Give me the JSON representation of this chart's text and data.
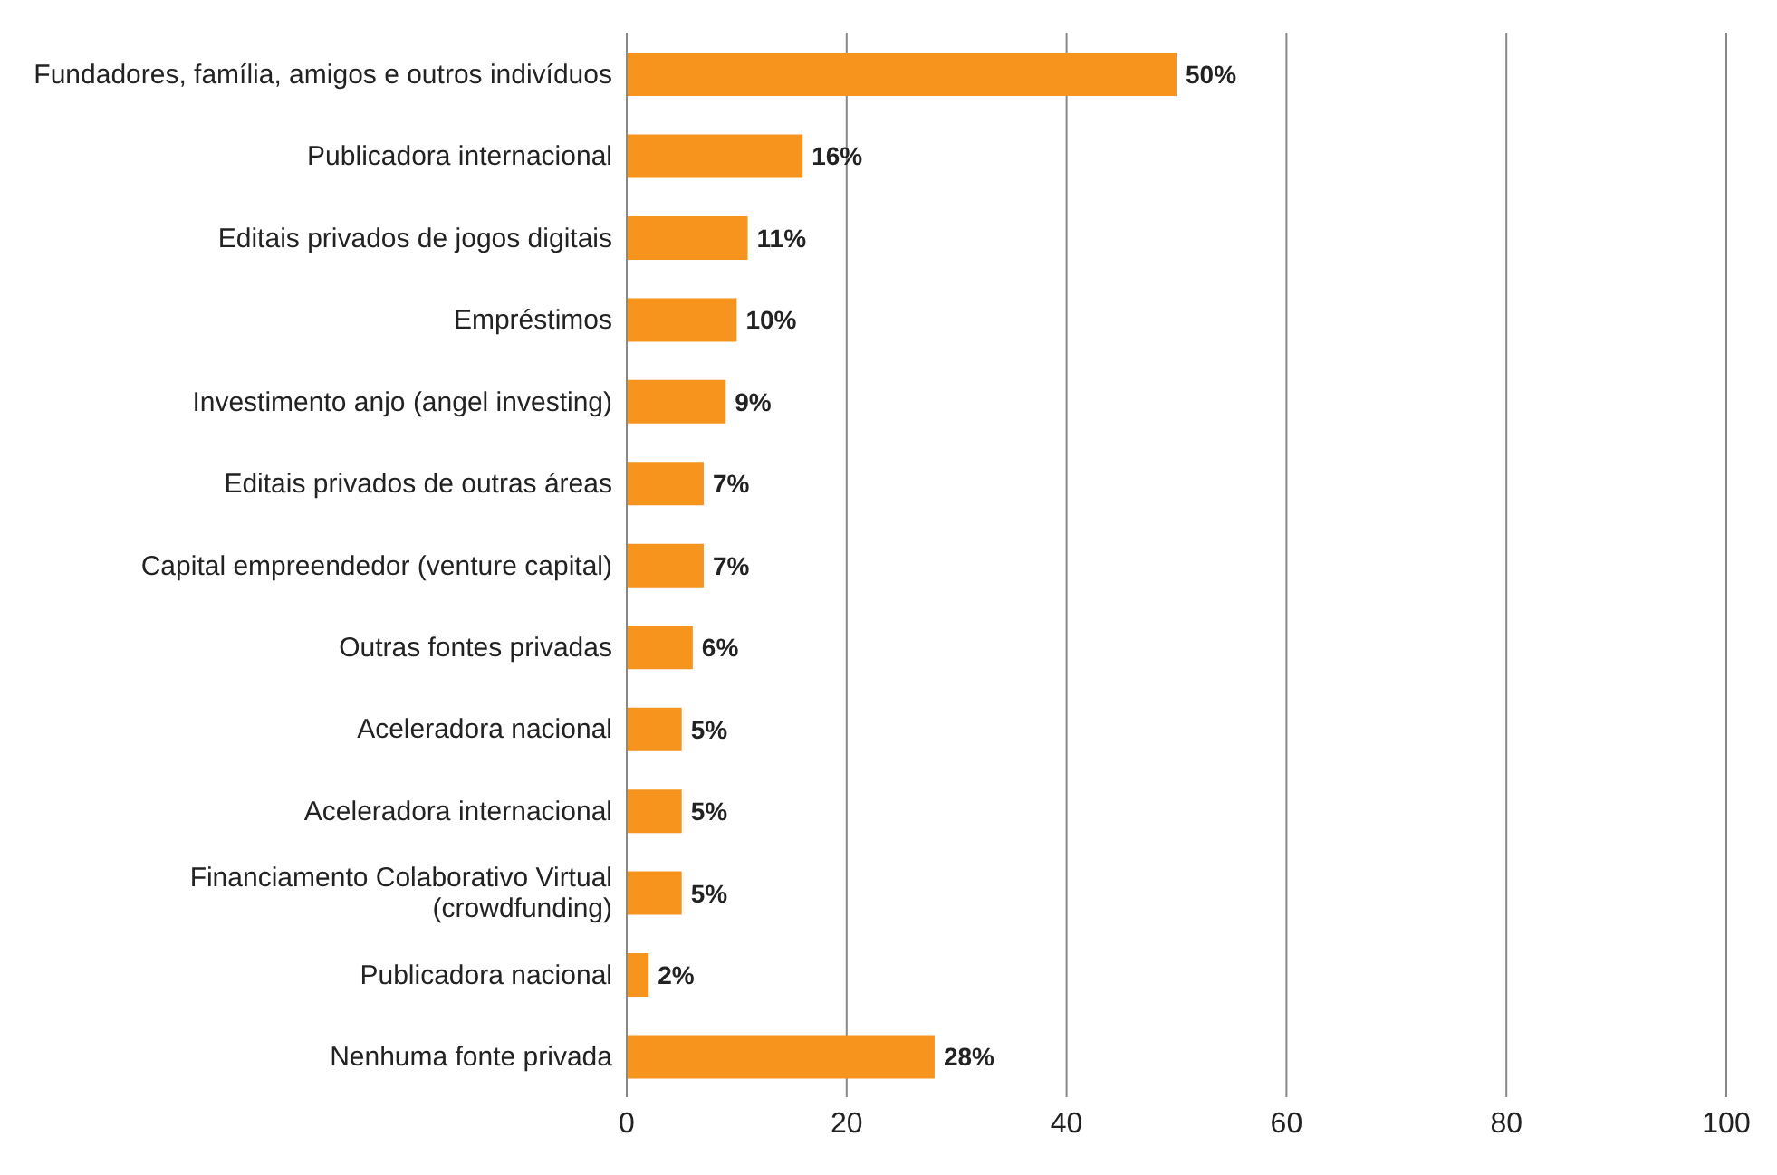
{
  "chart_data": {
    "type": "bar",
    "orientation": "horizontal",
    "categories": [
      "Fundadores, família, amigos e outros indivíduos",
      "Publicadora internacional",
      "Editais privados de jogos digitais",
      "Empréstimos",
      "Investimento anjo (angel investing)",
      "Editais privados de outras áreas",
      "Capital empreendedor (venture capital)",
      "Outras fontes privadas",
      "Aceleradora nacional",
      "Aceleradora internacional",
      "Financiamento Colaborativo Virtual (crowdfunding)",
      "Publicadora nacional",
      "Nenhuma fonte privada"
    ],
    "values": [
      50,
      16,
      11,
      10,
      9,
      7,
      7,
      6,
      5,
      5,
      5,
      2,
      28
    ],
    "value_labels": [
      "50%",
      "16%",
      "11%",
      "10%",
      "9%",
      "7%",
      "7%",
      "6%",
      "5%",
      "5%",
      "5%",
      "2%",
      "28%"
    ],
    "color": "#f7941d",
    "xlim": [
      0,
      100
    ],
    "xticks": [
      0,
      20,
      40,
      60,
      80,
      100
    ],
    "grid": "x"
  }
}
